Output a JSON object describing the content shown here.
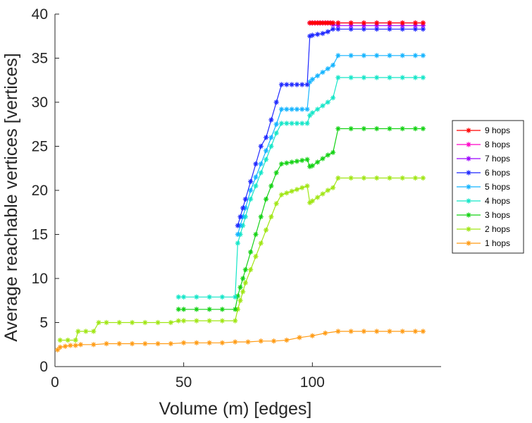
{
  "chart_data": {
    "type": "line",
    "xlabel": "Volume (m) [edges]",
    "ylabel": "Average reachable vertices [vertices]",
    "xlim": [
      0,
      150
    ],
    "ylim": [
      0,
      40
    ],
    "xticks": [
      "0",
      "50",
      "100"
    ],
    "yticks": [
      "0",
      "5",
      "10",
      "15",
      "20",
      "25",
      "30",
      "35",
      "40"
    ],
    "grid": false,
    "legend_position": "right",
    "marker": "asterisk",
    "series": [
      {
        "name": "9 hops",
        "color": "#ff0000",
        "points": [
          [
            99,
            39
          ],
          [
            100,
            39
          ],
          [
            101,
            39
          ],
          [
            102,
            39
          ],
          [
            103,
            39
          ],
          [
            104,
            39
          ],
          [
            105,
            39
          ],
          [
            106,
            39
          ],
          [
            107,
            39
          ],
          [
            108,
            39
          ],
          [
            110,
            39
          ],
          [
            115,
            39
          ],
          [
            120,
            39
          ],
          [
            125,
            39
          ],
          [
            130,
            39
          ],
          [
            135,
            39
          ],
          [
            140,
            39
          ],
          [
            143,
            39
          ]
        ]
      },
      {
        "name": "8 hops",
        "color": "#ff00c8",
        "points": [
          [
            99,
            39
          ],
          [
            100,
            39
          ],
          [
            101,
            39
          ],
          [
            102,
            39
          ],
          [
            103,
            39
          ],
          [
            104,
            39
          ],
          [
            105,
            39
          ],
          [
            106,
            39
          ],
          [
            107,
            39
          ],
          [
            108,
            39
          ],
          [
            110,
            39
          ],
          [
            115,
            39
          ],
          [
            120,
            39
          ],
          [
            125,
            39
          ],
          [
            130,
            39
          ],
          [
            135,
            39
          ],
          [
            140,
            39
          ],
          [
            143,
            39
          ]
        ]
      },
      {
        "name": "7 hops",
        "color": "#9b00ff",
        "points": [
          [
            99,
            39
          ],
          [
            100,
            39
          ],
          [
            101,
            39
          ],
          [
            102,
            39
          ],
          [
            103,
            39
          ],
          [
            104,
            39
          ],
          [
            105,
            39
          ],
          [
            106,
            39
          ],
          [
            107,
            39
          ],
          [
            108,
            38.8
          ],
          [
            110,
            38.7
          ],
          [
            115,
            38.7
          ],
          [
            120,
            38.7
          ],
          [
            125,
            38.7
          ],
          [
            130,
            38.7
          ],
          [
            135,
            38.7
          ],
          [
            140,
            38.7
          ],
          [
            143,
            38.7
          ]
        ]
      },
      {
        "name": "6 hops",
        "color": "#1e28ff",
        "points": [
          [
            71,
            16
          ],
          [
            72,
            17
          ],
          [
            73,
            18
          ],
          [
            74,
            19
          ],
          [
            76,
            21
          ],
          [
            78,
            23
          ],
          [
            80,
            25
          ],
          [
            82,
            26
          ],
          [
            84,
            28
          ],
          [
            86,
            30
          ],
          [
            88,
            32
          ],
          [
            90,
            32
          ],
          [
            92,
            32
          ],
          [
            94,
            32
          ],
          [
            96,
            32
          ],
          [
            98,
            32
          ],
          [
            99,
            37.5
          ],
          [
            100,
            37.6
          ],
          [
            102,
            37.7
          ],
          [
            104,
            37.8
          ],
          [
            106,
            38
          ],
          [
            108,
            38.3
          ],
          [
            110,
            38.3
          ],
          [
            115,
            38.3
          ],
          [
            120,
            38.3
          ],
          [
            125,
            38.3
          ],
          [
            130,
            38.3
          ],
          [
            135,
            38.3
          ],
          [
            140,
            38.3
          ],
          [
            143,
            38.3
          ]
        ]
      },
      {
        "name": "5 hops",
        "color": "#14b4ff",
        "points": [
          [
            71,
            15
          ],
          [
            72,
            16
          ],
          [
            73,
            17
          ],
          [
            74,
            18
          ],
          [
            76,
            20
          ],
          [
            78,
            21.5
          ],
          [
            80,
            23
          ],
          [
            82,
            24.5
          ],
          [
            84,
            26
          ],
          [
            86,
            27.5
          ],
          [
            88,
            29.2
          ],
          [
            90,
            29.2
          ],
          [
            92,
            29.2
          ],
          [
            94,
            29.2
          ],
          [
            96,
            29.2
          ],
          [
            98,
            29.2
          ],
          [
            99,
            32.3
          ],
          [
            100,
            32.6
          ],
          [
            102,
            33
          ],
          [
            104,
            33.4
          ],
          [
            106,
            33.8
          ],
          [
            108,
            34.2
          ],
          [
            110,
            35.3
          ],
          [
            115,
            35.3
          ],
          [
            120,
            35.3
          ],
          [
            125,
            35.3
          ],
          [
            130,
            35.3
          ],
          [
            135,
            35.3
          ],
          [
            140,
            35.3
          ],
          [
            143,
            35.3
          ]
        ]
      },
      {
        "name": "4 hops",
        "color": "#14e6c8",
        "points": [
          [
            48,
            7.9
          ],
          [
            50,
            7.9
          ],
          [
            55,
            7.9
          ],
          [
            60,
            7.9
          ],
          [
            65,
            7.9
          ],
          [
            70,
            7.9
          ],
          [
            71,
            14
          ],
          [
            72,
            15
          ],
          [
            73,
            16
          ],
          [
            74,
            17
          ],
          [
            76,
            19
          ],
          [
            78,
            20.5
          ],
          [
            80,
            22
          ],
          [
            82,
            23.5
          ],
          [
            84,
            25
          ],
          [
            86,
            26.5
          ],
          [
            88,
            27.6
          ],
          [
            90,
            27.6
          ],
          [
            92,
            27.6
          ],
          [
            94,
            27.6
          ],
          [
            96,
            27.6
          ],
          [
            98,
            27.6
          ],
          [
            99,
            28.5
          ],
          [
            100,
            28.8
          ],
          [
            102,
            29.2
          ],
          [
            104,
            29.6
          ],
          [
            106,
            30
          ],
          [
            108,
            30.5
          ],
          [
            110,
            32.8
          ],
          [
            115,
            32.8
          ],
          [
            120,
            32.8
          ],
          [
            125,
            32.8
          ],
          [
            130,
            32.8
          ],
          [
            135,
            32.8
          ],
          [
            140,
            32.8
          ],
          [
            143,
            32.8
          ]
        ]
      },
      {
        "name": "3 hops",
        "color": "#14d214",
        "points": [
          [
            48,
            6.5
          ],
          [
            50,
            6.5
          ],
          [
            55,
            6.5
          ],
          [
            60,
            6.5
          ],
          [
            65,
            6.5
          ],
          [
            70,
            6.5
          ],
          [
            71,
            8
          ],
          [
            72,
            9
          ],
          [
            73,
            10
          ],
          [
            74,
            11
          ],
          [
            76,
            13
          ],
          [
            78,
            15
          ],
          [
            80,
            17
          ],
          [
            82,
            19
          ],
          [
            84,
            20.5
          ],
          [
            86,
            22
          ],
          [
            88,
            23
          ],
          [
            90,
            23.1
          ],
          [
            92,
            23.2
          ],
          [
            94,
            23.3
          ],
          [
            96,
            23.4
          ],
          [
            98,
            23.5
          ],
          [
            99,
            22.7
          ],
          [
            100,
            22.8
          ],
          [
            102,
            23.2
          ],
          [
            104,
            23.6
          ],
          [
            106,
            24
          ],
          [
            108,
            24.3
          ],
          [
            110,
            27
          ],
          [
            115,
            27
          ],
          [
            120,
            27
          ],
          [
            125,
            27
          ],
          [
            130,
            27
          ],
          [
            135,
            27
          ],
          [
            140,
            27
          ],
          [
            143,
            27
          ]
        ]
      },
      {
        "name": "2 hops",
        "color": "#a0e614",
        "points": [
          [
            2,
            3
          ],
          [
            5,
            3
          ],
          [
            8,
            3
          ],
          [
            9,
            4
          ],
          [
            12,
            4
          ],
          [
            15,
            4
          ],
          [
            17,
            5
          ],
          [
            20,
            5
          ],
          [
            25,
            5
          ],
          [
            30,
            5
          ],
          [
            35,
            5
          ],
          [
            40,
            5
          ],
          [
            45,
            5
          ],
          [
            48,
            5.2
          ],
          [
            50,
            5.2
          ],
          [
            55,
            5.2
          ],
          [
            60,
            5.2
          ],
          [
            65,
            5.2
          ],
          [
            70,
            5.2
          ],
          [
            71,
            6.5
          ],
          [
            72,
            7.5
          ],
          [
            73,
            8.5
          ],
          [
            74,
            9.5
          ],
          [
            76,
            11
          ],
          [
            78,
            12.5
          ],
          [
            80,
            14
          ],
          [
            82,
            15.5
          ],
          [
            84,
            17
          ],
          [
            86,
            18.5
          ],
          [
            88,
            19.5
          ],
          [
            90,
            19.7
          ],
          [
            92,
            19.9
          ],
          [
            94,
            20.1
          ],
          [
            96,
            20.3
          ],
          [
            98,
            20.5
          ],
          [
            99,
            18.6
          ],
          [
            100,
            18.8
          ],
          [
            102,
            19.2
          ],
          [
            104,
            19.6
          ],
          [
            106,
            20
          ],
          [
            108,
            20.3
          ],
          [
            110,
            21.4
          ],
          [
            115,
            21.4
          ],
          [
            120,
            21.4
          ],
          [
            125,
            21.4
          ],
          [
            130,
            21.4
          ],
          [
            135,
            21.4
          ],
          [
            140,
            21.4
          ],
          [
            143,
            21.4
          ]
        ]
      },
      {
        "name": "1 hops",
        "color": "#ff9b14",
        "points": [
          [
            1,
            1.9
          ],
          [
            2,
            2.2
          ],
          [
            4,
            2.3
          ],
          [
            6,
            2.4
          ],
          [
            8,
            2.4
          ],
          [
            10,
            2.5
          ],
          [
            15,
            2.5
          ],
          [
            20,
            2.6
          ],
          [
            25,
            2.6
          ],
          [
            30,
            2.6
          ],
          [
            35,
            2.6
          ],
          [
            40,
            2.6
          ],
          [
            45,
            2.6
          ],
          [
            50,
            2.7
          ],
          [
            55,
            2.7
          ],
          [
            60,
            2.7
          ],
          [
            65,
            2.7
          ],
          [
            70,
            2.8
          ],
          [
            75,
            2.8
          ],
          [
            80,
            2.9
          ],
          [
            85,
            2.9
          ],
          [
            90,
            3
          ],
          [
            95,
            3.3
          ],
          [
            100,
            3.5
          ],
          [
            105,
            3.8
          ],
          [
            110,
            4
          ],
          [
            115,
            4
          ],
          [
            120,
            4
          ],
          [
            125,
            4
          ],
          [
            130,
            4
          ],
          [
            135,
            4
          ],
          [
            140,
            4
          ],
          [
            143,
            4
          ]
        ]
      }
    ]
  }
}
